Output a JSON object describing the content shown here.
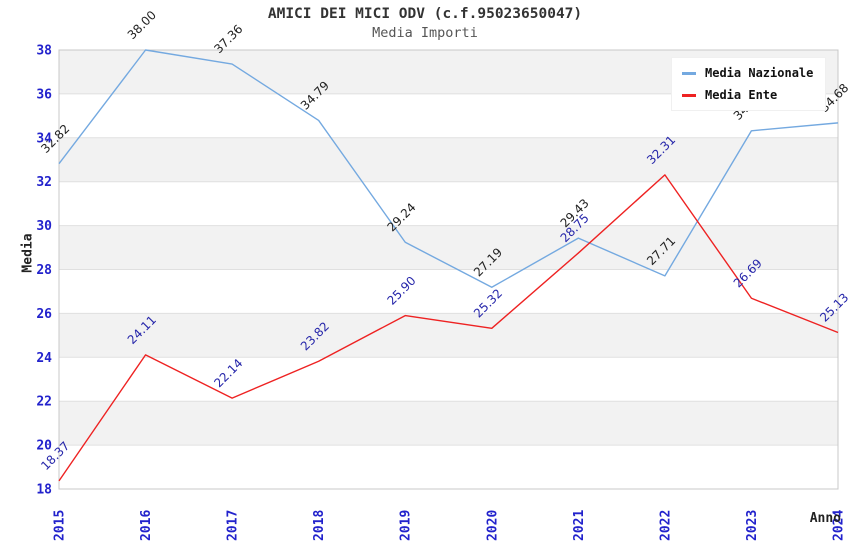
{
  "chart_data": {
    "type": "line",
    "title": "AMICI DEI MICI ODV (c.f.95023650047)",
    "subtitle": "Media Importi",
    "xlabel": "Anno",
    "ylabel": "Media",
    "categories": [
      "2015",
      "2016",
      "2017",
      "2018",
      "2019",
      "2020",
      "2021",
      "2022",
      "2023",
      "2024"
    ],
    "ylim": [
      18,
      38
    ],
    "yticks": [
      18,
      20,
      22,
      24,
      26,
      28,
      30,
      32,
      34,
      36,
      38
    ],
    "grid": "horizontal gridlines every 2 units with alternating gray bands (20-22, 24-26, 28-30, 32-34, 36-38)",
    "legend_position": "top-right",
    "series": [
      {
        "name": "Media Nazionale",
        "color": "#74a9e0",
        "label_color": "#222222",
        "values": [
          32.82,
          38.0,
          37.36,
          34.79,
          29.24,
          27.19,
          29.43,
          27.71,
          34.32,
          34.68
        ],
        "point_labels": [
          "32.82",
          "38.00",
          "37.36",
          "34.79",
          "29.24",
          "27.19",
          "29.43",
          "27.71",
          "34.32",
          "34.68"
        ]
      },
      {
        "name": "Media Ente",
        "color": "#ee2222",
        "label_color": "#2626aa",
        "values": [
          18.37,
          24.11,
          22.14,
          23.82,
          25.9,
          25.32,
          28.75,
          32.31,
          26.69,
          25.13
        ],
        "point_labels": [
          "18.37",
          "24.11",
          "22.14",
          "23.82",
          "25.90",
          "25.32",
          "28.75",
          "32.31",
          "26.69",
          "25.13"
        ]
      }
    ]
  },
  "style": {
    "tick_color": "#2222cc",
    "band_color": "#f2f2f2",
    "grid_color": "#e0e0e0",
    "border_color": "#c8c8c8",
    "background": "#ffffff"
  }
}
